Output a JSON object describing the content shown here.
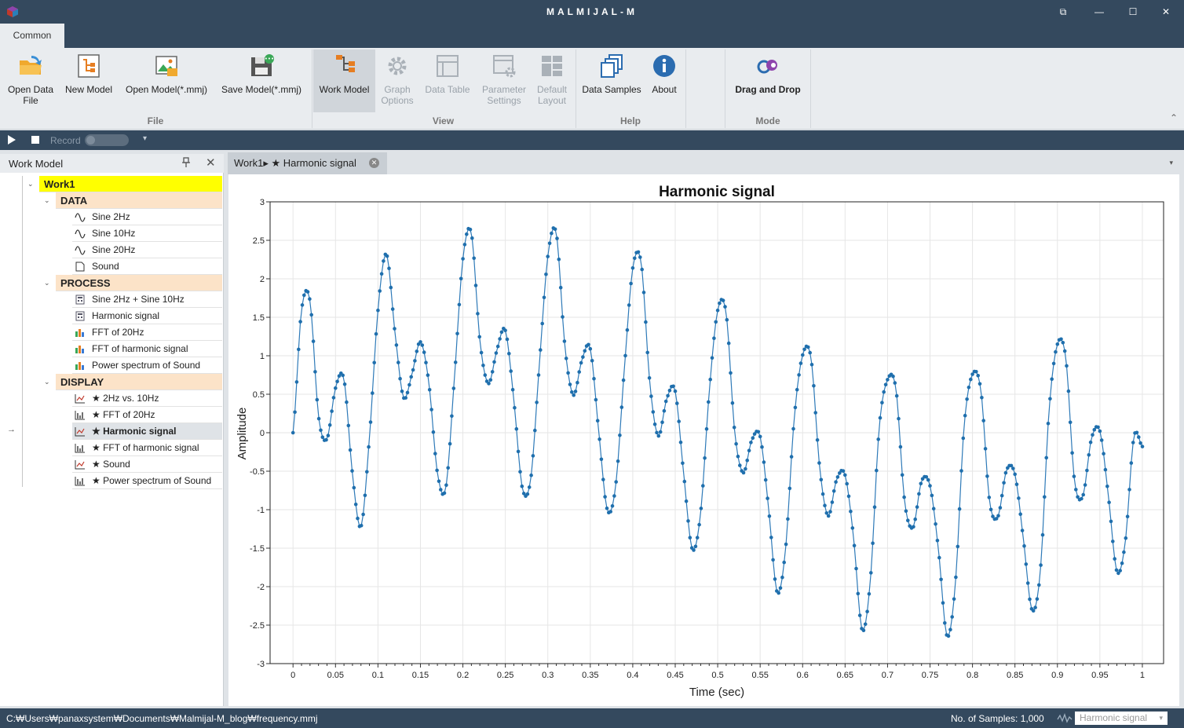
{
  "window": {
    "title": "MALMIJAL-M",
    "restore_icon": "⧉",
    "minimize_icon": "—",
    "maximize_icon": "☐",
    "close_icon": "✕"
  },
  "ribbon": {
    "tab": "Common",
    "file_group": {
      "label": "File",
      "open_data_file": "Open Data File",
      "new_model": "New Model",
      "open_model": "Open Model(*.mmj)",
      "save_model": "Save Model(*.mmj)"
    },
    "view_group": {
      "label": "View",
      "work_model": "Work Model",
      "graph_options": "Graph Options",
      "data_table": "Data Table",
      "parameter_settings": "Parameter Settings",
      "default_layout": "Default Layout"
    },
    "help_group": {
      "label": "Help",
      "data_samples": "Data Samples",
      "about": "About"
    },
    "mode_group": {
      "label": "Mode",
      "drag_and_drop": "Drag and Drop"
    },
    "collapse_icon": "⌃"
  },
  "record_bar": {
    "record_label": "Record",
    "dropdown_icon": "▾"
  },
  "work_model_panel": {
    "title": "Work Model",
    "pin_icon": "📌",
    "close_icon": "✕",
    "root": "Work1",
    "categories": {
      "data": "DATA",
      "process": "PROCESS",
      "display": "DISPLAY"
    },
    "data_items": [
      "Sine 2Hz",
      "Sine 10Hz",
      "Sine 20Hz",
      "Sound"
    ],
    "process_items": [
      "Sine 2Hz + Sine 10Hz",
      "Harmonic signal",
      "FFT of 20Hz",
      "FFT of harmonic signal",
      "Power spectrum of Sound"
    ],
    "display_items": [
      "★ 2Hz vs. 10Hz",
      "★ FFT of 20Hz",
      "★ Harmonic signal",
      "★ FFT of harmonic signal",
      "★ Sound",
      "★ Power spectrum of Sound"
    ],
    "selected_display_index": 2,
    "row_arrow": "→"
  },
  "document_tab": {
    "label": "Work1▸ ★ Harmonic signal",
    "close_icon": "✕",
    "menu_icon": "▾"
  },
  "status_bar": {
    "path": "C:₩Users₩panaxsystem₩Documents₩Malmijal-M_blog₩frequency.mmj",
    "samples": "No. of Samples: 1,000",
    "graph_select": "Harmonic signal",
    "dropdown_icon": "▾"
  },
  "chart_data": {
    "type": "scatter",
    "title": "Harmonic signal",
    "xlabel": "Time (sec)",
    "ylabel": "Amplitude",
    "xlim": [
      -0.027,
      1.025
    ],
    "ylim": [
      -3,
      3
    ],
    "xticks": [
      0,
      0.05,
      0.1,
      0.15,
      0.2,
      0.25,
      0.3,
      0.35,
      0.4,
      0.45,
      0.5,
      0.55,
      0.6,
      0.65,
      0.7,
      0.75,
      0.8,
      0.85,
      0.9,
      0.95,
      1
    ],
    "xtick_labels": [
      "0",
      "0.05",
      "0.1",
      "0.15",
      "0.2",
      "0.25",
      "0.3",
      "0.35",
      "0.4",
      "0.45",
      "0.5",
      "0.55",
      "0.6",
      "0.65",
      "0.7",
      "0.75",
      "0.8",
      "0.85",
      "0.9",
      "0.95",
      "1"
    ],
    "yticks": [
      3,
      2.5,
      2,
      1.5,
      1,
      0.5,
      0,
      -0.5,
      -1,
      -1.5,
      -2,
      -2.5,
      -3
    ],
    "ytick_labels": [
      "3",
      "2.5",
      "2",
      "1.5",
      "1",
      "0.5",
      "0",
      "-0.5",
      "-1",
      "-1.5",
      "-2",
      "-2.5",
      "-3"
    ],
    "grid": true,
    "line_color": "#2e7ab8",
    "marker_color": "#1f6fad",
    "series": [
      {
        "x": [
          0,
          0.01,
          0.02,
          0.03,
          0.04,
          0.05,
          0.06,
          0.07,
          0.08,
          0.09,
          0.1,
          0.11,
          0.12,
          0.13,
          0.14,
          0.15,
          0.16,
          0.17,
          0.18,
          0.19,
          0.2,
          0.21,
          0.22,
          0.23,
          0.24,
          0.25,
          0.26,
          0.27,
          0.28,
          0.29,
          0.3,
          0.31,
          0.32,
          0.33,
          0.34,
          0.35,
          0.36,
          0.37,
          0.38,
          0.39,
          0.4,
          0.41,
          0.42,
          0.43,
          0.44,
          0.45,
          0.46,
          0.47,
          0.48,
          0.49,
          0.5,
          0.51,
          0.52,
          0.53,
          0.54,
          0.55,
          0.56,
          0.57,
          0.58,
          0.59,
          0.6,
          0.61,
          0.62,
          0.63,
          0.64,
          0.65,
          0.66,
          0.67,
          0.68,
          0.69,
          0.7,
          0.71,
          0.72,
          0.73,
          0.74,
          0.75,
          0.76,
          0.77,
          0.78,
          0.79,
          0.8,
          0.81,
          0.82,
          0.83,
          0.84,
          0.85,
          0.86,
          0.87,
          0.88,
          0.89,
          0.9,
          0.91,
          0.92,
          0.93,
          0.94,
          0.95,
          0.96,
          0.97,
          0.98,
          0.99,
          1
        ],
        "y": [
          0,
          1.59,
          1.71,
          0.22,
          -0.08,
          0.58,
          0.69,
          -0.54,
          -1.22,
          -0.06,
          1.59,
          2.32,
          1.31,
          0.46,
          0.76,
          1.18,
          0.64,
          -0.52,
          -0.71,
          0.71,
          2.26,
          2.59,
          1.2,
          0.64,
          1.07,
          1.33,
          0.42,
          -0.72,
          -0.59,
          0.88,
          2.29,
          2.59,
          1.14,
          0.49,
          0.94,
          1.09,
          0.01,
          -1.0,
          -0.68,
          0.81,
          2.14,
          2.2,
          0.66,
          -0.04,
          0.44,
          0.54,
          -0.54,
          -1.51,
          -1.03,
          0.52,
          1.59,
          1.55,
          0.02,
          -0.52,
          -0.1,
          -0.05,
          -0.99,
          -2.07,
          -1.5,
          0.17,
          1.01,
          0.96,
          -0.44,
          -1.08,
          -0.61,
          -0.55,
          -1.37,
          -2.56,
          -1.88,
          0.04,
          0.69,
          0.56,
          -0.88,
          -1.23,
          -0.63,
          -0.69,
          -1.53,
          -2.64,
          -1.94,
          0.06,
          0.76,
          0.54,
          -0.88,
          -1.09,
          -0.49,
          -0.54,
          -1.39,
          -2.3,
          -1.78,
          0.26,
          1.15,
          0.96,
          -0.61,
          -0.82,
          -0.08,
          0.02,
          -0.82,
          -1.8,
          -1.41,
          -0.06,
          -0.18
        ]
      }
    ]
  }
}
